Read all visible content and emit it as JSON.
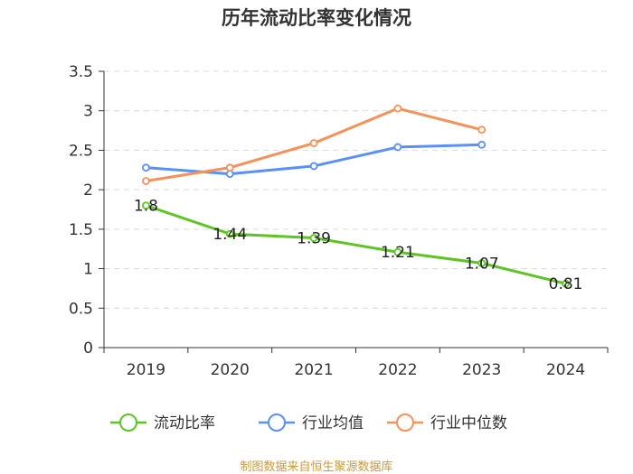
{
  "chart_data": {
    "type": "line",
    "title": "历年流动比率变化情况",
    "categories": [
      "2019",
      "2020",
      "2021",
      "2022",
      "2023",
      "2024"
    ],
    "ylim": [
      0,
      3.5
    ],
    "yticks": [
      "0",
      "0.5",
      "1",
      "1.5",
      "2",
      "2.5",
      "3",
      "3.5"
    ],
    "ytick_values": [
      0,
      0.5,
      1,
      1.5,
      2,
      2.5,
      3,
      3.5
    ],
    "grid": true,
    "legend_position": "bottom",
    "series": [
      {
        "name": "流动比率",
        "color": "#5ec424",
        "values": [
          1.8,
          1.44,
          1.39,
          1.21,
          1.07,
          0.81
        ],
        "labels": [
          "1.8",
          "1.44",
          "1.39",
          "1.21",
          "1.07",
          "0.81"
        ]
      },
      {
        "name": "行业均值",
        "color": "#5b8ff9",
        "values": [
          2.28,
          2.2,
          2.3,
          2.54,
          2.57,
          null
        ]
      },
      {
        "name": "行业中位数",
        "color": "#f5925b",
        "values": [
          2.11,
          2.28,
          2.59,
          3.03,
          2.76,
          null
        ]
      }
    ]
  },
  "footer": {
    "source": "制图数据来自恒生聚源数据库"
  }
}
